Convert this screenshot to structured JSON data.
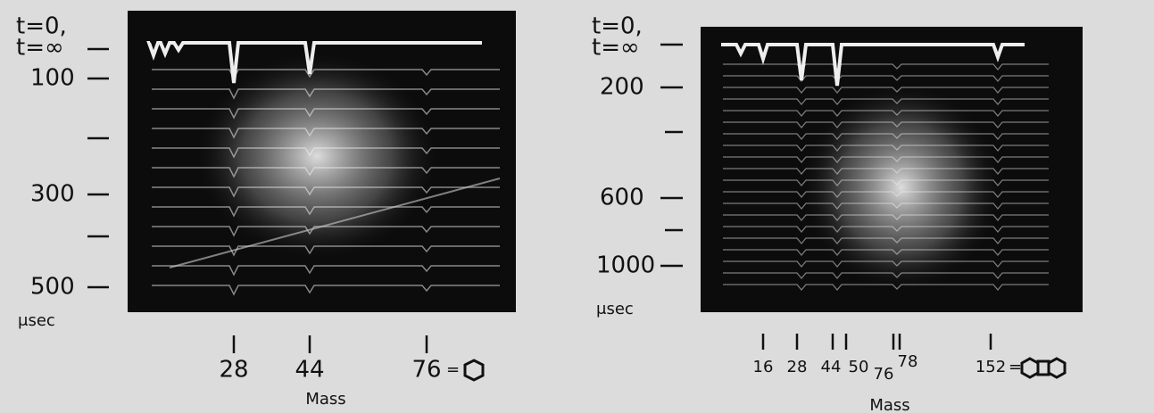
{
  "panels": [
    {
      "y_labels": [
        "t=0,",
        "t=∞",
        "100",
        "300",
        "500",
        "μsec"
      ],
      "x_labels": [
        "28",
        "44",
        "76"
      ],
      "x_suffix": "=",
      "x_title": "Mass"
    },
    {
      "y_labels": [
        "t=0,",
        "t=∞",
        "200",
        "600",
        "1000",
        "μsec"
      ],
      "x_labels": [
        "16",
        "28",
        "44",
        "50",
        "76",
        "78",
        "152"
      ],
      "x_suffix": "=",
      "x_title": "Mass"
    }
  ]
}
